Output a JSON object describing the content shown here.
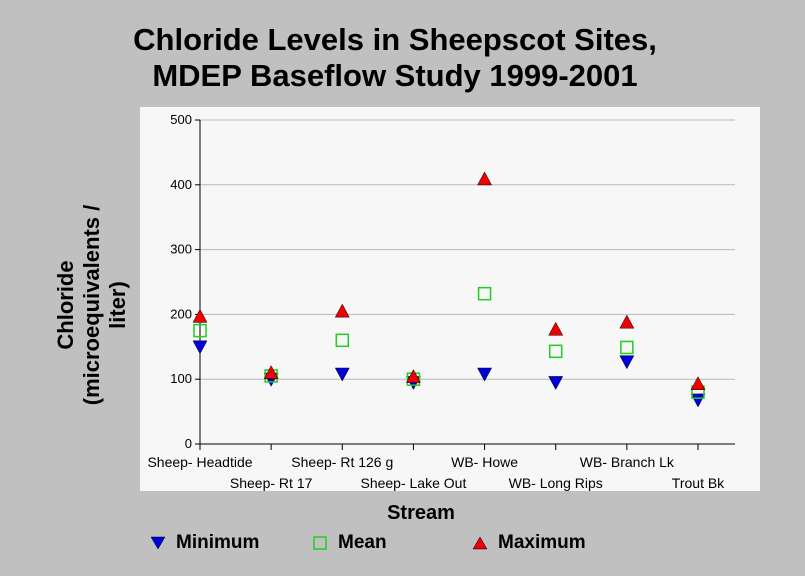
{
  "title_lines": [
    "Chloride Levels in Sheepscot Sites,",
    "MDEP Baseflow Study 1999-2001"
  ],
  "colors": {
    "minimum": "#0000dd",
    "mean": "#22cc22",
    "maximum": "#ee0000"
  },
  "chart_data": {
    "type": "scatter",
    "title": "Chloride Levels in Sheepscot Sites, MDEP Baseflow Study 1999-2001",
    "xlabel": "Stream",
    "ylabel_lines": [
      "Chloride",
      "(microequivalents /",
      "liter)"
    ],
    "ylim": [
      0,
      500
    ],
    "yticks": [
      0,
      100,
      200,
      300,
      400,
      500
    ],
    "grid": true,
    "legend_position": "bottom",
    "categories": [
      "Sheep- Headtide",
      "Sheep- Rt 17",
      "Sheep- Rt 126 g",
      "Sheep- Lake Out",
      "WB- Howe",
      "WB- Long Rips",
      "WB- Branch Lk",
      "Trout Bk"
    ],
    "series": [
      {
        "name": "Minimum",
        "marker": "triangle-down",
        "color": "#0000dd",
        "values": [
          150,
          100,
          108,
          95,
          108,
          95,
          127,
          68
        ]
      },
      {
        "name": "Mean",
        "marker": "square-open",
        "color": "#22cc22",
        "values": [
          175,
          105,
          160,
          100,
          232,
          143,
          149,
          80
        ]
      },
      {
        "name": "Maximum",
        "marker": "triangle-up",
        "color": "#ee0000",
        "values": [
          197,
          110,
          205,
          104,
          409,
          177,
          188,
          93
        ]
      }
    ]
  }
}
